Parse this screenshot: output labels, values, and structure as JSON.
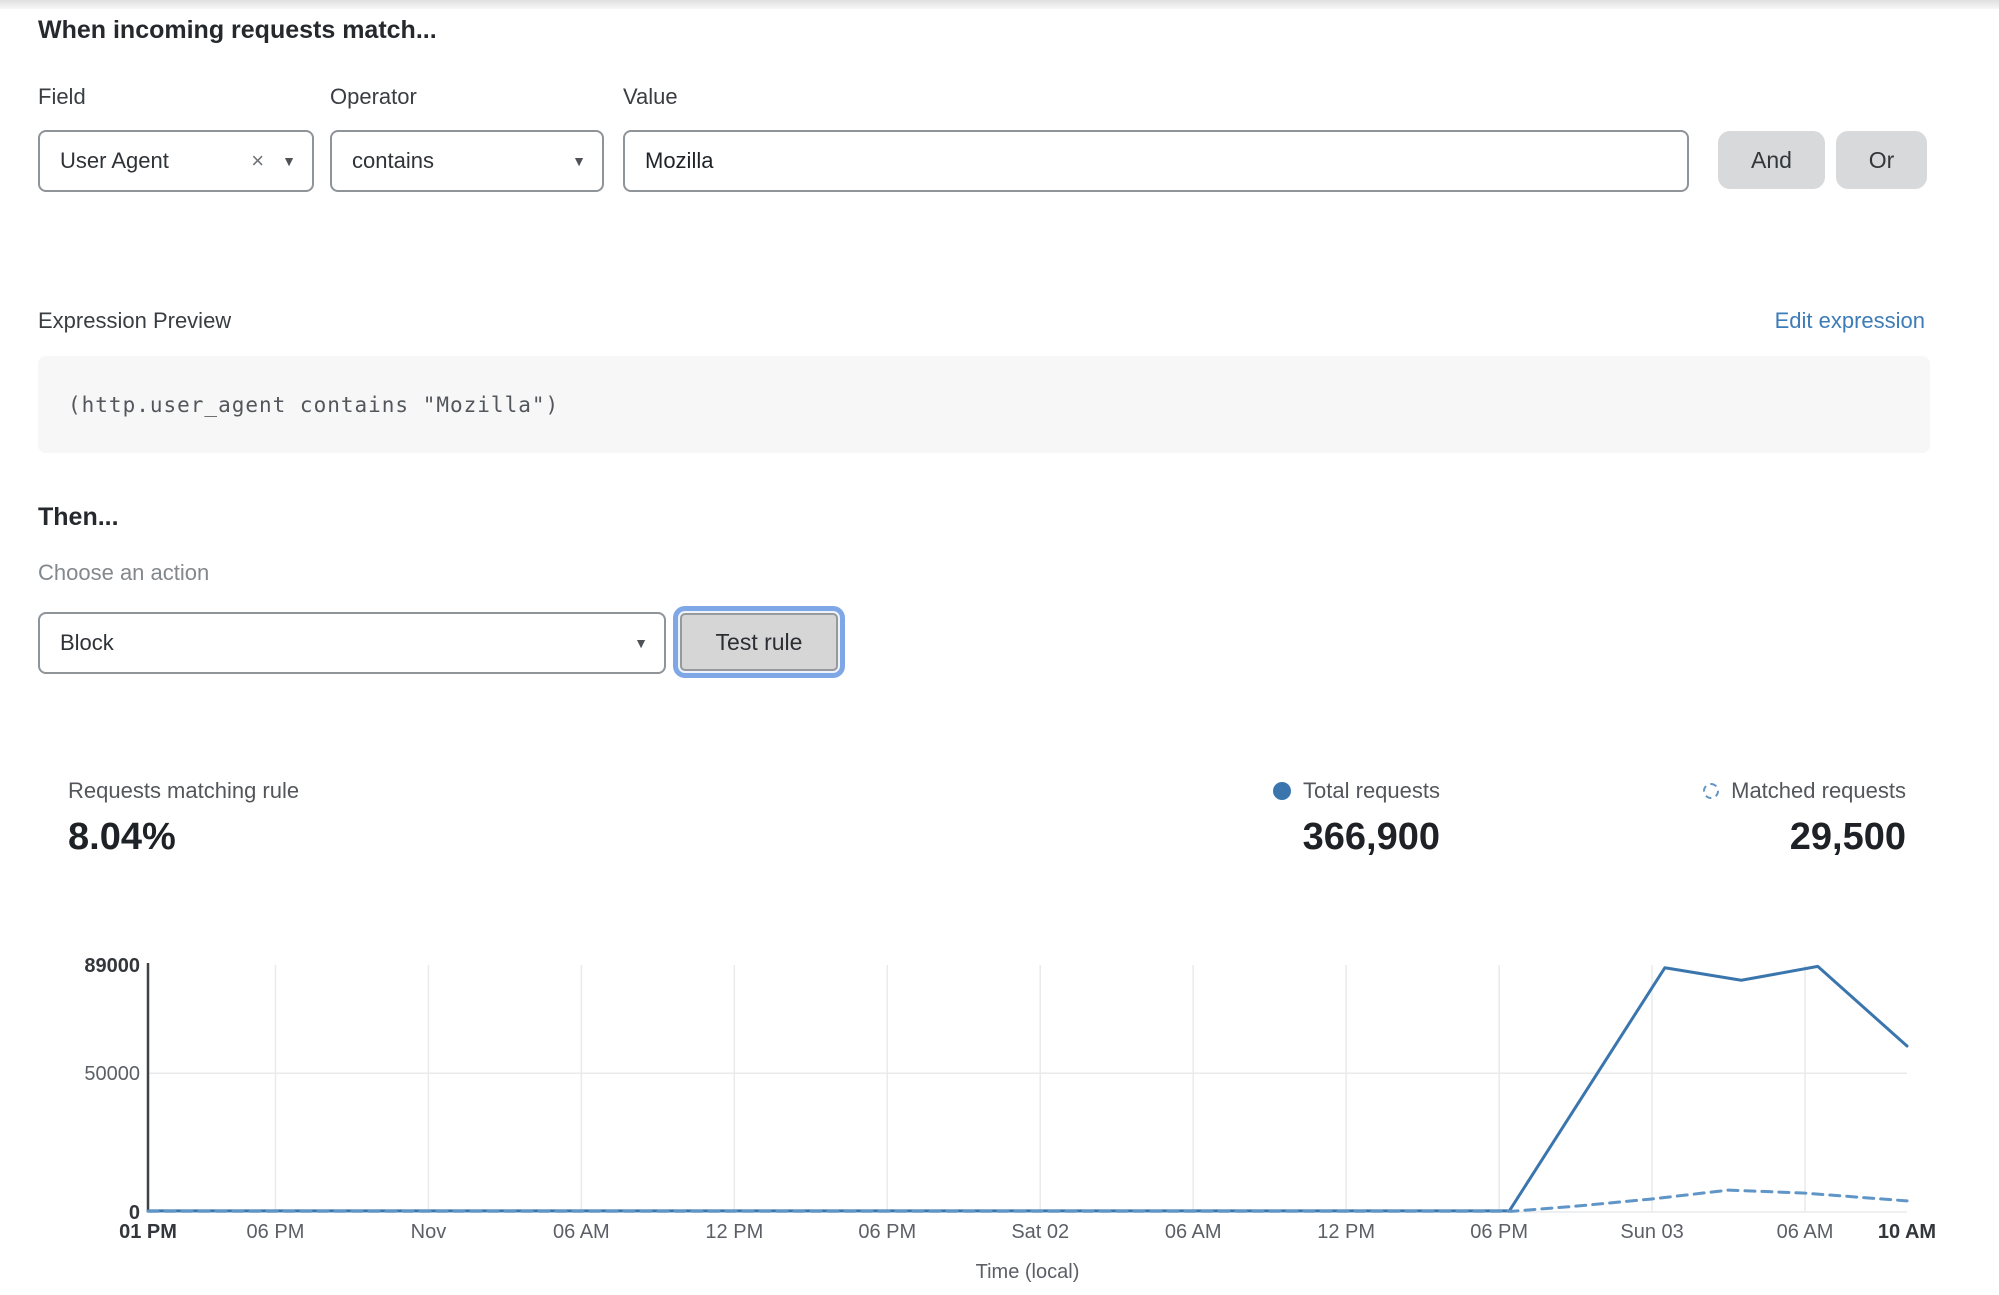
{
  "rule_builder": {
    "heading": "When incoming requests match...",
    "field": {
      "label": "Field",
      "value": "User Agent"
    },
    "operator": {
      "label": "Operator",
      "value": "contains"
    },
    "value": {
      "label": "Value",
      "value": "Mozilla"
    },
    "and_label": "And",
    "or_label": "Or"
  },
  "expression": {
    "label": "Expression Preview",
    "edit_link": "Edit expression",
    "code": "(http.user_agent contains \"Mozilla\")"
  },
  "action": {
    "heading": "Then...",
    "choose_label": "Choose an action",
    "selected": "Block",
    "test_button": "Test rule"
  },
  "stats": {
    "matching": {
      "label": "Requests matching rule",
      "value": "8.04%"
    },
    "total": {
      "label": "Total requests",
      "value": "366,900"
    },
    "matched": {
      "label": "Matched requests",
      "value": "29,500"
    }
  },
  "colors": {
    "line_solid": "#3a76ad",
    "line_dashed": "#6095c8",
    "link": "#3d7cb8",
    "grid": "#e9eaeb",
    "axis_spine": "#3f4247"
  },
  "chart_data": {
    "type": "line",
    "title": "",
    "xlabel": "Time (local)",
    "ylabel": "",
    "ylim": [
      0,
      89000
    ],
    "x_unit": "hours_from_first_tick",
    "x_range": [
      0,
      69
    ],
    "grid": true,
    "legend_position": "above-right",
    "yticks": [
      {
        "value": 89000,
        "label": "89000",
        "bold": true,
        "gridline": false
      },
      {
        "value": 50000,
        "label": "50000",
        "bold": false,
        "gridline": true
      },
      {
        "value": 0,
        "label": "0",
        "bold": true,
        "gridline": true
      }
    ],
    "xticks": [
      {
        "h": 0,
        "label": "01 PM",
        "bold": true
      },
      {
        "h": 5,
        "label": "06 PM"
      },
      {
        "h": 11,
        "label": "Nov"
      },
      {
        "h": 17,
        "label": "06 AM"
      },
      {
        "h": 23,
        "label": "12 PM"
      },
      {
        "h": 29,
        "label": "06 PM"
      },
      {
        "h": 35,
        "label": "Sat 02"
      },
      {
        "h": 41,
        "label": "06 AM"
      },
      {
        "h": 47,
        "label": "12 PM"
      },
      {
        "h": 53,
        "label": "06 PM"
      },
      {
        "h": 59,
        "label": "Sun 03"
      },
      {
        "h": 65,
        "label": "06 AM"
      },
      {
        "h": 69,
        "label": "10 AM",
        "bold": true
      }
    ],
    "series": [
      {
        "name": "Total requests",
        "style": "solid",
        "color": "#3a76ad",
        "points": [
          [
            0,
            400
          ],
          [
            53.4,
            400
          ],
          [
            59.5,
            88000
          ],
          [
            62.5,
            83500
          ],
          [
            65.5,
            88500
          ],
          [
            69,
            59800
          ]
        ]
      },
      {
        "name": "Matched requests",
        "style": "dashed",
        "color": "#6095c8",
        "points": [
          [
            0,
            250
          ],
          [
            53.5,
            250
          ],
          [
            56,
            2100
          ],
          [
            59,
            4700
          ],
          [
            62,
            7900
          ],
          [
            65,
            6800
          ],
          [
            69,
            4000
          ]
        ]
      }
    ]
  }
}
